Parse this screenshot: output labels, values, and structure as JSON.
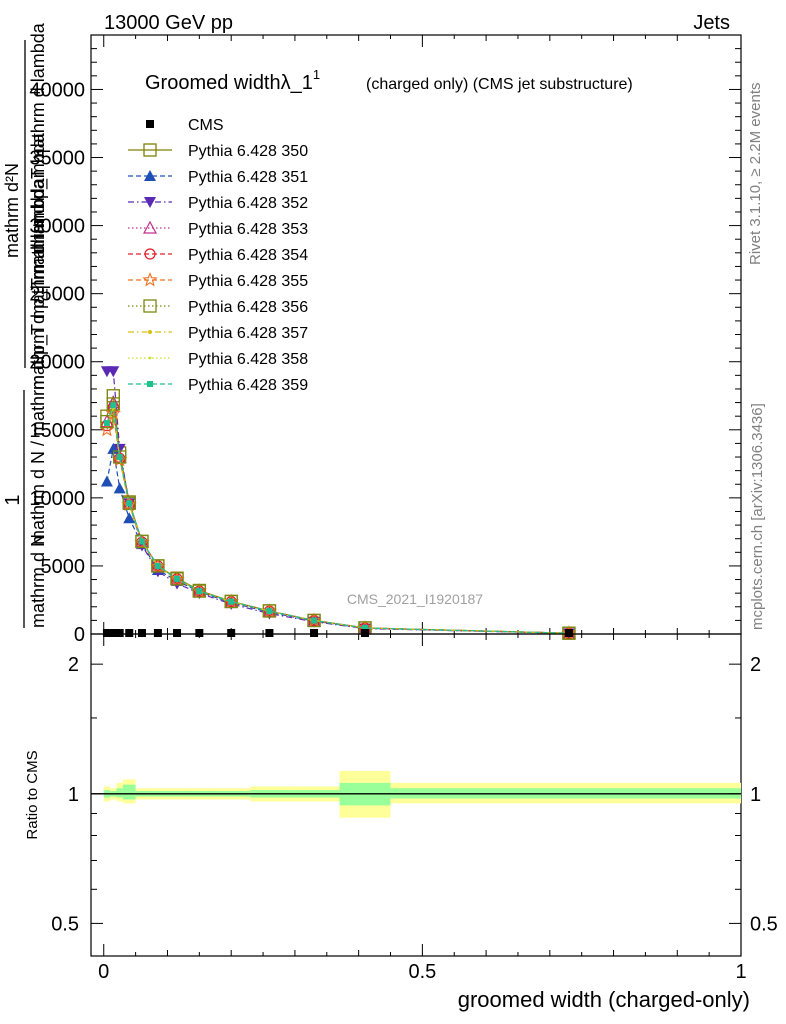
{
  "header": {
    "left": "13000 GeV pp",
    "right": "Jets"
  },
  "side_labels": {
    "rivet": "Rivet 3.1.10, ≥ 2.2M events",
    "mcplots": "mcplots.cern.ch [arXiv:1306.3436]"
  },
  "chart_data": [
    {
      "type": "line",
      "title": "Groomed widthλ_1",
      "title_superscript": "1",
      "subtitle": "(charged only) (CMS jet substructure)",
      "ylabel": {
        "fraction_numerator": "1",
        "fraction_denominator": "mathrm d N",
        "main_numerator": "mathrm d²N",
        "main_denominator": "mathrm d p_T mathrm d lambda",
        "overlap_1": "mathrm d p_T mathrm d lambda",
        "overlap_2": "mathrm d N / mathrm d p_T mathrm d lambda"
      },
      "watermark": "CMS_2021_I1920187",
      "xlim": [
        -0.02,
        1.0
      ],
      "ylim": [
        0,
        44000
      ],
      "y_ticks": [
        0,
        5000,
        10000,
        15000,
        20000,
        25000,
        30000,
        35000,
        40000
      ],
      "y_tick_labels": [
        "0",
        "5000",
        "10000",
        "15000",
        "20000",
        "25000",
        "30000",
        "35000",
        "40000"
      ],
      "legend_position": "top-left",
      "x": [
        0.005,
        0.015,
        0.025,
        0.04,
        0.06,
        0.085,
        0.115,
        0.15,
        0.2,
        0.26,
        0.33,
        0.41,
        0.73
      ],
      "series": [
        {
          "name": "CMS",
          "color": "#000000",
          "marker": "square",
          "dash": "none",
          "values": [
            0,
            0,
            0,
            0,
            0,
            0,
            0,
            0,
            0,
            0,
            0,
            0,
            0
          ]
        },
        {
          "name": "Pythia 6.428 350",
          "color": "#808000",
          "marker": "square-open",
          "dash": "solid",
          "values": [
            16000,
            17500,
            13300,
            9700,
            6800,
            5000,
            4100,
            3200,
            2400,
            1700,
            1000,
            450,
            60
          ]
        },
        {
          "name": "Pythia 6.428 351",
          "color": "#1f4fb5",
          "marker": "triangle-up",
          "dash": "dashed",
          "values": [
            11200,
            13600,
            10700,
            8500,
            6600,
            4700,
            3900,
            3100,
            2300,
            1600,
            950,
            420,
            55
          ]
        },
        {
          "name": "Pythia 6.428 352",
          "color": "#5b2ab5",
          "marker": "triangle-down",
          "dash": "dashdot",
          "values": [
            19300,
            19300,
            13600,
            9600,
            6500,
            4600,
            3700,
            3000,
            2200,
            1500,
            900,
            400,
            50
          ]
        },
        {
          "name": "Pythia 6.428 353",
          "color": "#c0308a",
          "marker": "triangle-open",
          "dash": "dotted",
          "values": [
            15600,
            17000,
            13000,
            9600,
            6800,
            5000,
            4050,
            3150,
            2380,
            1680,
            980,
            440,
            58
          ]
        },
        {
          "name": "Pythia 6.428 354",
          "color": "#e0202a",
          "marker": "circle-open",
          "dash": "dashed",
          "values": [
            15300,
            16600,
            12900,
            9550,
            6750,
            5000,
            4050,
            3150,
            2380,
            1680,
            990,
            440,
            58
          ]
        },
        {
          "name": "Pythia 6.428 355",
          "color": "#f07020",
          "marker": "star-open",
          "dash": "dashed",
          "values": [
            15000,
            16200,
            12800,
            9500,
            6700,
            4950,
            4000,
            3150,
            2370,
            1670,
            990,
            440,
            58
          ]
        },
        {
          "name": "Pythia 6.428 356",
          "color": "#7a8a10",
          "marker": "square-open",
          "dash": "dotted",
          "values": [
            15600,
            16900,
            13000,
            9600,
            6800,
            5000,
            4050,
            3150,
            2380,
            1690,
            990,
            440,
            58
          ]
        },
        {
          "name": "Pythia 6.428 357",
          "color": "#d8c010",
          "marker": "dot",
          "dash": "dashdot",
          "values": [
            15400,
            16600,
            12900,
            9550,
            6750,
            5000,
            4050,
            3150,
            2380,
            1680,
            990,
            440,
            58
          ]
        },
        {
          "name": "Pythia 6.428 358",
          "color": "#c8e020",
          "marker": "dot-small",
          "dash": "dotted",
          "values": [
            15400,
            16600,
            12900,
            9550,
            6750,
            5000,
            4050,
            3150,
            2380,
            1680,
            990,
            440,
            58
          ]
        },
        {
          "name": "Pythia 6.428 359",
          "color": "#20c090",
          "marker": "square-small",
          "dash": "dashed",
          "values": [
            15500,
            16800,
            13000,
            9600,
            6800,
            5000,
            4050,
            3150,
            2380,
            1680,
            990,
            440,
            58
          ]
        }
      ]
    },
    {
      "type": "area",
      "ylabel": "Ratio to CMS",
      "xlabel": "groomed width (charged-only)",
      "xlim": [
        -0.02,
        1.0
      ],
      "ylim": [
        0.42,
        2.35
      ],
      "log_y": true,
      "x_ticks": [
        0,
        0.5,
        1
      ],
      "x_tick_labels": [
        "0",
        "0.5",
        "1"
      ],
      "y_ticks": [
        0.5,
        1,
        2
      ],
      "y_tick_labels": [
        "0.5",
        "1",
        "2"
      ],
      "reference_line": 1,
      "bin_edges": [
        0.0,
        0.01,
        0.02,
        0.03,
        0.05,
        0.07,
        0.1,
        0.13,
        0.17,
        0.23,
        0.29,
        0.37,
        0.45,
        1.0
      ],
      "band_outer": [
        [
          0.96,
          1.04
        ],
        [
          0.97,
          1.03
        ],
        [
          0.96,
          1.06
        ],
        [
          0.95,
          1.08
        ],
        [
          0.97,
          1.03
        ],
        [
          0.97,
          1.03
        ],
        [
          0.97,
          1.03
        ],
        [
          0.97,
          1.03
        ],
        [
          0.97,
          1.03
        ],
        [
          0.96,
          1.04
        ],
        [
          0.96,
          1.04
        ],
        [
          0.88,
          1.13
        ],
        [
          0.95,
          1.06
        ]
      ],
      "band_inner": [
        [
          0.98,
          1.02
        ],
        [
          0.985,
          1.015
        ],
        [
          0.98,
          1.03
        ],
        [
          0.97,
          1.05
        ],
        [
          0.985,
          1.015
        ],
        [
          0.985,
          1.015
        ],
        [
          0.985,
          1.015
        ],
        [
          0.985,
          1.015
        ],
        [
          0.985,
          1.015
        ],
        [
          0.98,
          1.02
        ],
        [
          0.98,
          1.02
        ],
        [
          0.94,
          1.06
        ],
        [
          0.975,
          1.03
        ]
      ],
      "band_outer_color": "#ffff99",
      "band_inner_color": "#99ff99"
    }
  ]
}
